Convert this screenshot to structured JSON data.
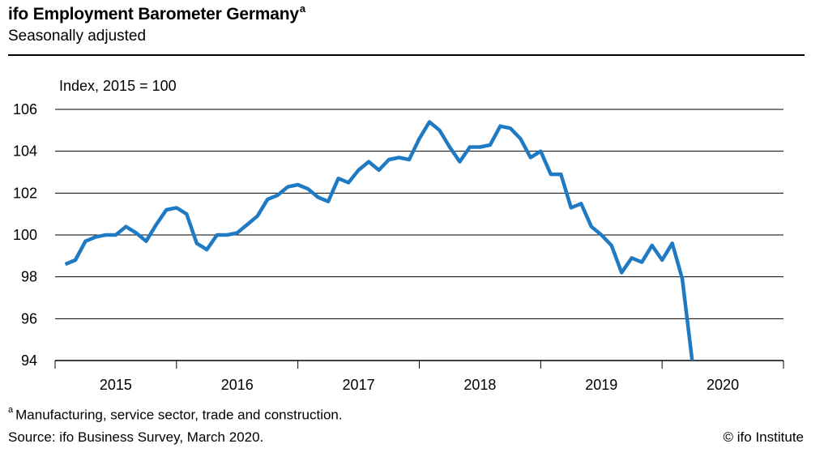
{
  "header": {
    "title": "ifo Employment Barometer Germany",
    "title_marker": "a",
    "subtitle": "Seasonally adjusted"
  },
  "footer": {
    "footnote_marker": "a",
    "footnote": "Manufacturing, service sector, trade and construction.",
    "source": "Source: ifo Business Survey, March 2020.",
    "credit": "© ifo Institute"
  },
  "chart_data": {
    "type": "line",
    "title": "ifo Employment Barometer Germany",
    "subtitle": "Seasonally adjusted",
    "ylabel": "Index, 2015 = 100",
    "xlabel": "",
    "ylim": [
      94,
      106
    ],
    "yticks": [
      94,
      96,
      98,
      100,
      102,
      104,
      106
    ],
    "xlim": [
      "2014-12",
      "2020-12"
    ],
    "x_tick_labels": [
      "2015",
      "2016",
      "2017",
      "2018",
      "2019",
      "2020"
    ],
    "grid": "horizontal",
    "line_color": "#1f7ac4",
    "series": [
      {
        "x": [
          "2015-01",
          "2015-02",
          "2015-03",
          "2015-04",
          "2015-05",
          "2015-06",
          "2015-07",
          "2015-08",
          "2015-09",
          "2015-10",
          "2015-11",
          "2015-12",
          "2016-01",
          "2016-02",
          "2016-03",
          "2016-04",
          "2016-05",
          "2016-06",
          "2016-07",
          "2016-08",
          "2016-09",
          "2016-10",
          "2016-11",
          "2016-12",
          "2017-01",
          "2017-02",
          "2017-03",
          "2017-04",
          "2017-05",
          "2017-06",
          "2017-07",
          "2017-08",
          "2017-09",
          "2017-10",
          "2017-11",
          "2017-12",
          "2018-01",
          "2018-02",
          "2018-03",
          "2018-04",
          "2018-05",
          "2018-06",
          "2018-07",
          "2018-08",
          "2018-09",
          "2018-10",
          "2018-11",
          "2018-12",
          "2019-01",
          "2019-02",
          "2019-03",
          "2019-04",
          "2019-05",
          "2019-06",
          "2019-07",
          "2019-08",
          "2019-09",
          "2019-10",
          "2019-11",
          "2019-12",
          "2020-01",
          "2020-02",
          "2020-03"
        ],
        "values": [
          98.6,
          98.8,
          99.7,
          99.9,
          100.0,
          100.0,
          100.4,
          100.1,
          99.7,
          100.5,
          101.2,
          101.3,
          101.0,
          99.6,
          99.3,
          100.0,
          100.0,
          100.1,
          100.5,
          100.9,
          101.7,
          101.9,
          102.3,
          102.4,
          102.2,
          101.8,
          101.6,
          102.7,
          102.5,
          103.1,
          103.5,
          103.1,
          103.6,
          103.7,
          103.6,
          104.6,
          105.4,
          105.0,
          104.2,
          103.5,
          104.2,
          104.2,
          104.3,
          105.2,
          105.1,
          104.6,
          103.7,
          104.0,
          102.9,
          102.9,
          101.3,
          101.5,
          100.4,
          100.0,
          99.5,
          98.2,
          98.9,
          98.7,
          99.5,
          98.8,
          99.6,
          97.9,
          93.9
        ]
      }
    ]
  }
}
